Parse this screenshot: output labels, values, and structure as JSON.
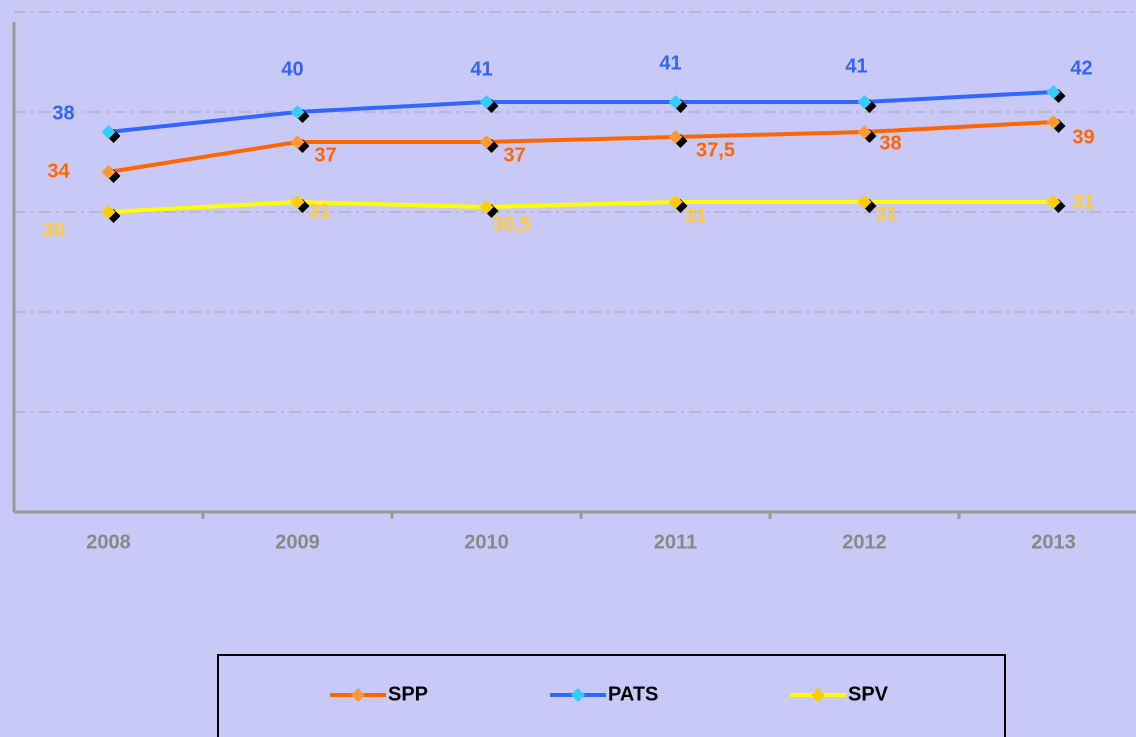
{
  "chart_data": {
    "type": "line",
    "categories": [
      "2008",
      "2009",
      "2010",
      "2011",
      "2012",
      "2013"
    ],
    "series": [
      {
        "name": "SPP",
        "color": "#ff6600",
        "marker_color": "#ff9933",
        "label_color": "#ff6600",
        "values": [
          34,
          37,
          37,
          37.5,
          38,
          39
        ],
        "value_labels": [
          "34",
          "37",
          "37",
          "37,5",
          "38",
          "39"
        ]
      },
      {
        "name": "PATS",
        "color": "#3366ff",
        "marker_color": "#33ccff",
        "label_color": "#3366ee",
        "values": [
          38,
          40,
          41,
          41,
          41,
          42
        ],
        "value_labels": [
          "38",
          "40",
          "41",
          "41",
          "41",
          "42"
        ]
      },
      {
        "name": "SPV",
        "color": "#ffff00",
        "marker_color": "#ffcc00",
        "label_color": "#ffcc33",
        "values": [
          30,
          31,
          30.5,
          31,
          31,
          31
        ],
        "value_labels": [
          "30",
          "31",
          "30,5",
          "31",
          "31",
          "31"
        ]
      }
    ],
    "ylim": [
      0,
      50
    ],
    "yticks": [
      0,
      10,
      20,
      30,
      40,
      50
    ],
    "grid": true,
    "legend": "bottom"
  }
}
